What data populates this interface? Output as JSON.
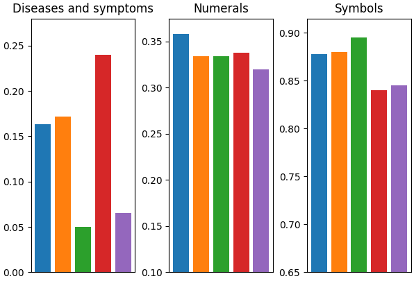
{
  "chart_data": [
    {
      "type": "bar",
      "title": "Diseases and symptoms",
      "categories": [
        null,
        null,
        null,
        null,
        null
      ],
      "values": [
        0.163,
        0.172,
        0.05,
        0.24,
        0.065
      ],
      "ylim": [
        0.0,
        0.28
      ],
      "yticks": [
        {
          "value": 0.0,
          "label": "0.00"
        },
        0.05,
        {
          "value": 0.1,
          "label": "0.10"
        },
        0.15,
        {
          "value": 0.2,
          "label": "0.20"
        },
        0.25
      ],
      "tick_labels": "y"
    },
    {
      "type": "bar",
      "title": "Numerals",
      "categories": [
        null,
        null,
        null,
        null,
        null
      ],
      "values": [
        0.358,
        0.334,
        0.334,
        0.338,
        0.32
      ],
      "ylim": [
        0.1,
        0.375
      ],
      "yticks": [
        {
          "value": 0.1,
          "label": "0.10"
        },
        0.15,
        {
          "value": 0.2,
          "label": "0.20"
        },
        0.25,
        {
          "value": 0.3,
          "label": "0.30"
        },
        0.35
      ],
      "tick_labels": "y"
    },
    {
      "type": "bar",
      "title": "Symbols",
      "categories": [
        null,
        null,
        null,
        null,
        null
      ],
      "values": [
        0.878,
        0.88,
        0.895,
        0.84,
        0.845
      ],
      "ylim": [
        0.65,
        0.915
      ],
      "yticks": [
        0.65,
        {
          "value": 0.7,
          "label": "0.70"
        },
        0.75,
        {
          "value": 0.8,
          "label": "0.80"
        },
        0.85,
        {
          "value": 0.9,
          "label": "0.90"
        }
      ],
      "tick_labels": "y"
    }
  ]
}
